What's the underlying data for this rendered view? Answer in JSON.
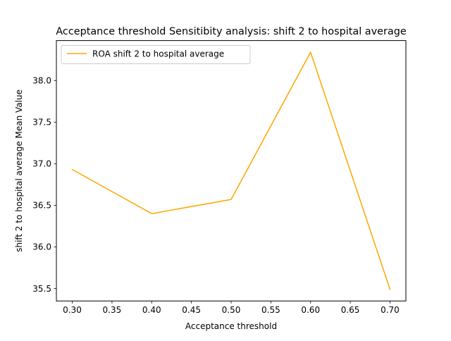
{
  "chart_data": {
    "type": "line",
    "title": "Acceptance threshold Sensitibity analysis: shift 2 to hospital average",
    "xlabel": "Acceptance threshold",
    "ylabel": "shift 2 to hospital average Mean Value",
    "x": [
      0.3,
      0.4,
      0.5,
      0.6,
      0.7
    ],
    "series": [
      {
        "name": "ROA shift 2 to hospital average",
        "color": "#ffa500",
        "values": [
          36.93,
          36.4,
          36.57,
          38.34,
          35.49
        ]
      }
    ],
    "xticks": [
      "0.30",
      "0.35",
      "0.40",
      "0.45",
      "0.50",
      "0.55",
      "0.60",
      "0.65",
      "0.70"
    ],
    "yticks": [
      "35.5",
      "36.0",
      "36.5",
      "37.0",
      "37.5",
      "38.0"
    ],
    "xlim": [
      0.28,
      0.72
    ],
    "ylim": [
      35.35,
      38.48
    ],
    "grid": false,
    "legend_position": "upper-left"
  }
}
